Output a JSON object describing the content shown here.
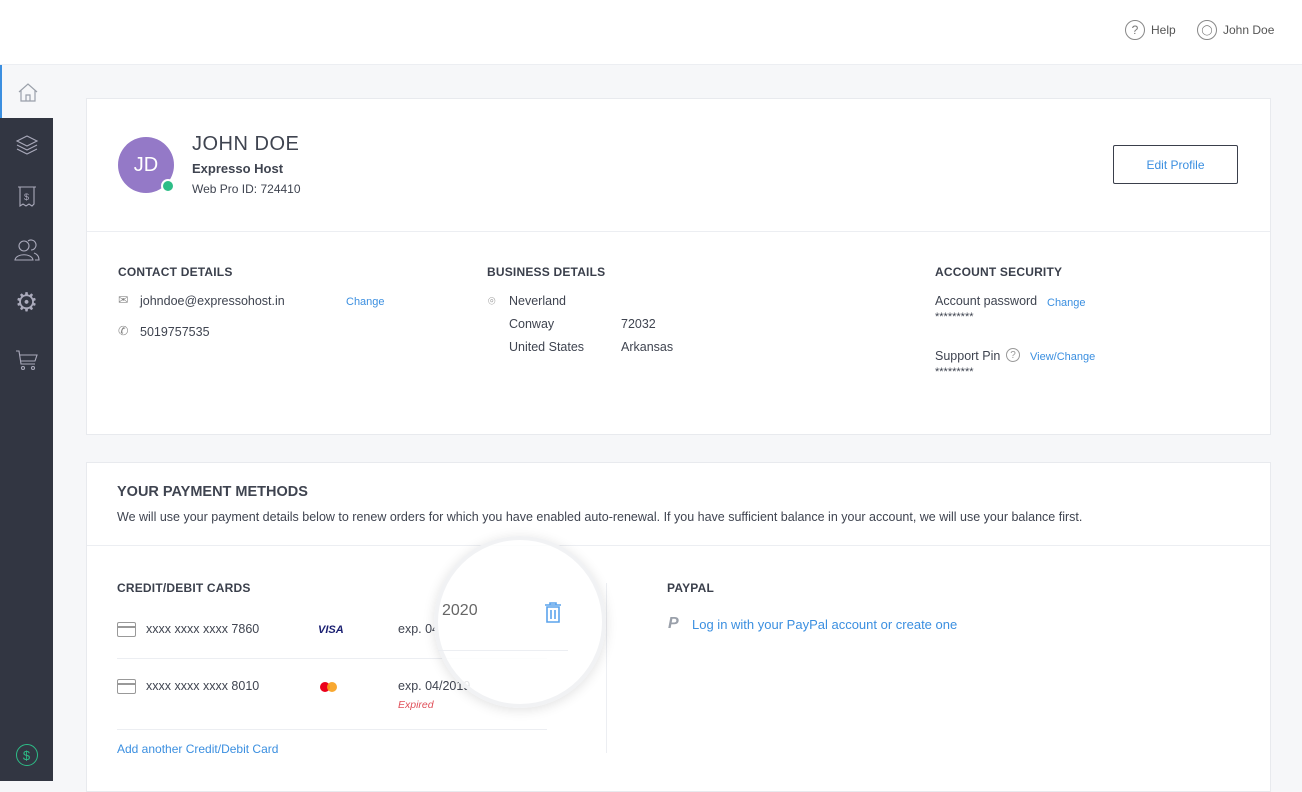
{
  "header": {
    "help": "Help",
    "user": "John Doe"
  },
  "sidebar": {
    "items": [
      "home-icon",
      "layers-icon",
      "invoice-icon",
      "users-icon",
      "gear-icon",
      "cart-icon"
    ],
    "bottom": "dollar-icon"
  },
  "profile": {
    "initials": "JD",
    "name": "JOHN DOE",
    "company": "Expresso Host",
    "web_pro_id": "Web Pro ID: 724410",
    "edit_label": "Edit Profile",
    "status_color": "#2dbd87"
  },
  "contact": {
    "title": "CONTACT DETAILS",
    "email": "johndoe@expressohost.in",
    "change": "Change",
    "phone": "5019757535"
  },
  "business": {
    "title": "BUSINESS DETAILS",
    "line1": "Neverland",
    "city": "Conway",
    "zip": "72032",
    "country": "United States",
    "state": "Arkansas"
  },
  "security": {
    "title": "ACCOUNT SECURITY",
    "password_label": "Account password",
    "password_change": "Change",
    "password_mask": "*********",
    "pin_label": "Support Pin",
    "pin_change": "View/Change",
    "pin_mask": "*********"
  },
  "payment": {
    "title": "YOUR PAYMENT METHODS",
    "desc": "We will use your payment details below to renew orders for which you have enabled auto-renewal. If you have sufficient balance in your account, we will use your balance first.",
    "cards_title": "CREDIT/DEBIT CARDS",
    "cards": [
      {
        "number": "xxxx xxxx xxxx 7860",
        "brand": "VISA",
        "exp": "exp. 04"
      },
      {
        "number": "xxxx xxxx xxxx 8010",
        "brand": "mastercard",
        "exp": "exp. 04/2019",
        "status": "Expired"
      }
    ],
    "add_card": "Add another Credit/Debit Card",
    "magnifier_text": "2020",
    "paypal_title": "PAYPAL",
    "paypal_link": "Log in with your PayPal account or create one"
  }
}
